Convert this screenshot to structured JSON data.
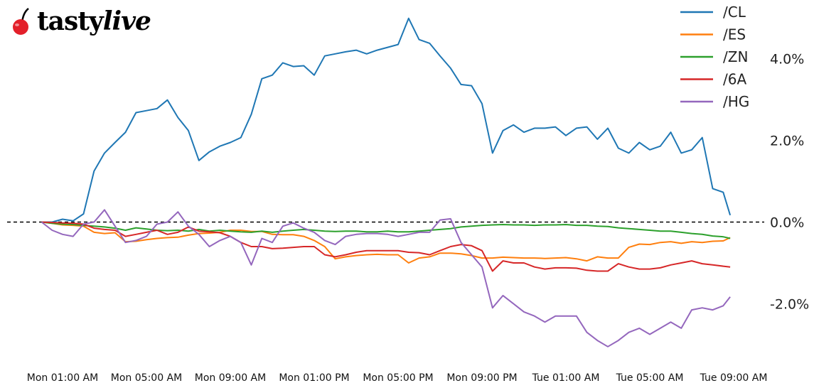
{
  "logo": {
    "text_main": "tasty",
    "text_italic": "live",
    "cherry_color": "#e3202a"
  },
  "chart_data": {
    "type": "line",
    "title": "",
    "xlabel": "",
    "ylabel": "",
    "xlim": [
      "Mon 00:00",
      "Tue 09:00"
    ],
    "ylim": [
      -3.35,
      5.3
    ],
    "grid": false,
    "zero_line": {
      "value": 0,
      "style": "dashed",
      "color": "#000000"
    },
    "legend_placement": "top-right",
    "x_ticks": [
      {
        "label": "Mon 01:00 AM",
        "at": "Mon 01:00"
      },
      {
        "label": "Mon 05:00 AM",
        "at": "Mon 05:00"
      },
      {
        "label": "Mon 09:00 AM",
        "at": "Mon 09:00"
      },
      {
        "label": "Mon 01:00 PM",
        "at": "Mon 13:00"
      },
      {
        "label": "Mon 05:00 PM",
        "at": "Mon 17:00"
      },
      {
        "label": "Mon 09:00 PM",
        "at": "Mon 21:00"
      },
      {
        "label": "Tue 01:00 AM",
        "at": "Tue 01:00"
      },
      {
        "label": "Tue 05:00 AM",
        "at": "Tue 05:00"
      },
      {
        "label": "Tue 09:00 AM",
        "at": "Tue 09:00"
      }
    ],
    "y_ticks": [
      {
        "label": "4.0%",
        "value": 4
      },
      {
        "label": "2.0%",
        "value": 2
      },
      {
        "label": "0.0%",
        "value": 0
      },
      {
        "label": "-2.0%",
        "value": -2
      }
    ],
    "x": [
      "Mon 00:00",
      "Mon 00:30",
      "Mon 01:00",
      "Mon 01:30",
      "Mon 02:00",
      "Mon 02:30",
      "Mon 03:00",
      "Mon 03:30",
      "Mon 04:00",
      "Mon 04:30",
      "Mon 05:00",
      "Mon 05:30",
      "Mon 06:00",
      "Mon 06:30",
      "Mon 07:00",
      "Mon 07:30",
      "Mon 08:00",
      "Mon 08:30",
      "Mon 09:00",
      "Mon 09:30",
      "Mon 10:00",
      "Mon 10:30",
      "Mon 11:00",
      "Mon 11:30",
      "Mon 12:00",
      "Mon 12:30",
      "Mon 13:00",
      "Mon 13:30",
      "Mon 14:00",
      "Mon 14:30",
      "Mon 15:00",
      "Mon 15:30",
      "Mon 16:00",
      "Mon 16:30",
      "Mon 17:00",
      "Mon 17:30",
      "Mon 18:00",
      "Mon 18:30",
      "Mon 19:00",
      "Mon 19:30",
      "Mon 20:00",
      "Mon 20:30",
      "Mon 21:00",
      "Mon 21:30",
      "Mon 22:00",
      "Mon 22:30",
      "Mon 23:00",
      "Mon 23:30",
      "Tue 00:00",
      "Tue 00:30",
      "Tue 01:00",
      "Tue 01:30",
      "Tue 02:00",
      "Tue 02:30",
      "Tue 03:00",
      "Tue 03:30",
      "Tue 04:00",
      "Tue 04:30",
      "Tue 05:00",
      "Tue 05:30",
      "Tue 06:00",
      "Tue 06:30",
      "Tue 07:00",
      "Tue 07:30",
      "Tue 08:00",
      "Tue 08:30",
      "Tue 08:50"
    ],
    "series": [
      {
        "name": "/CL",
        "color": "#1f77b4",
        "values": [
          0,
          0,
          0.07,
          0.03,
          0.2,
          1.25,
          1.69,
          1.95,
          2.2,
          2.68,
          2.73,
          2.78,
          2.99,
          2.56,
          2.24,
          1.51,
          1.72,
          1.86,
          1.95,
          2.07,
          2.64,
          3.51,
          3.6,
          3.9,
          3.81,
          3.83,
          3.6,
          4.07,
          4.12,
          4.17,
          4.21,
          4.12,
          4.21,
          4.28,
          4.35,
          4.99,
          4.47,
          4.38,
          4.07,
          3.77,
          3.37,
          3.34,
          2.9,
          1.69,
          2.24,
          2.38,
          2.2,
          2.3,
          2.3,
          2.33,
          2.12,
          2.3,
          2.33,
          2.03,
          2.3,
          1.81,
          1.69,
          1.95,
          1.77,
          1.86,
          2.2,
          1.69,
          1.77,
          2.07,
          0.82,
          0.73,
          0.17
        ]
      },
      {
        "name": "/ES",
        "color": "#ff7f0e",
        "values": [
          0,
          -0.03,
          -0.07,
          -0.08,
          -0.1,
          -0.25,
          -0.28,
          -0.26,
          -0.48,
          -0.47,
          -0.43,
          -0.4,
          -0.38,
          -0.37,
          -0.32,
          -0.28,
          -0.27,
          -0.25,
          -0.2,
          -0.2,
          -0.23,
          -0.23,
          -0.3,
          -0.31,
          -0.31,
          -0.35,
          -0.45,
          -0.6,
          -0.9,
          -0.85,
          -0.82,
          -0.8,
          -0.79,
          -0.8,
          -0.8,
          -1.0,
          -0.88,
          -0.85,
          -0.76,
          -0.76,
          -0.78,
          -0.82,
          -0.88,
          -0.88,
          -0.86,
          -0.87,
          -0.88,
          -0.88,
          -0.89,
          -0.88,
          -0.87,
          -0.9,
          -0.95,
          -0.85,
          -0.88,
          -0.88,
          -0.62,
          -0.54,
          -0.55,
          -0.5,
          -0.48,
          -0.52,
          -0.48,
          -0.5,
          -0.47,
          -0.46,
          -0.38
        ]
      },
      {
        "name": "/ZN",
        "color": "#2ca02c",
        "values": [
          0,
          -0.03,
          -0.05,
          -0.06,
          -0.08,
          -0.1,
          -0.12,
          -0.15,
          -0.2,
          -0.14,
          -0.17,
          -0.2,
          -0.21,
          -0.2,
          -0.22,
          -0.18,
          -0.22,
          -0.2,
          -0.22,
          -0.24,
          -0.25,
          -0.22,
          -0.25,
          -0.22,
          -0.2,
          -0.18,
          -0.2,
          -0.22,
          -0.23,
          -0.22,
          -0.22,
          -0.24,
          -0.24,
          -0.22,
          -0.24,
          -0.24,
          -0.22,
          -0.2,
          -0.18,
          -0.16,
          -0.12,
          -0.1,
          -0.08,
          -0.07,
          -0.06,
          -0.07,
          -0.07,
          -0.08,
          -0.07,
          -0.07,
          -0.06,
          -0.08,
          -0.08,
          -0.1,
          -0.11,
          -0.14,
          -0.16,
          -0.18,
          -0.2,
          -0.22,
          -0.22,
          -0.25,
          -0.28,
          -0.3,
          -0.34,
          -0.36,
          -0.4
        ]
      },
      {
        "name": "/6A",
        "color": "#d62728",
        "values": [
          0,
          -0.01,
          -0.02,
          -0.03,
          -0.05,
          -0.15,
          -0.18,
          -0.2,
          -0.35,
          -0.3,
          -0.25,
          -0.2,
          -0.3,
          -0.25,
          -0.12,
          -0.22,
          -0.24,
          -0.26,
          -0.35,
          -0.5,
          -0.6,
          -0.6,
          -0.65,
          -0.64,
          -0.62,
          -0.6,
          -0.6,
          -0.8,
          -0.85,
          -0.8,
          -0.74,
          -0.7,
          -0.7,
          -0.7,
          -0.7,
          -0.74,
          -0.75,
          -0.8,
          -0.7,
          -0.6,
          -0.55,
          -0.58,
          -0.7,
          -1.2,
          -0.95,
          -1.0,
          -1.0,
          -1.1,
          -1.15,
          -1.12,
          -1.12,
          -1.13,
          -1.18,
          -1.2,
          -1.2,
          -1.02,
          -1.1,
          -1.15,
          -1.15,
          -1.12,
          -1.05,
          -1.0,
          -0.95,
          -1.02,
          -1.05,
          -1.08,
          -1.1
        ]
      },
      {
        "name": "/HG",
        "color": "#9467bd",
        "values": [
          0,
          -0.2,
          -0.3,
          -0.35,
          -0.05,
          0,
          0.3,
          -0.1,
          -0.5,
          -0.45,
          -0.35,
          -0.05,
          0,
          0.25,
          -0.1,
          -0.3,
          -0.6,
          -0.45,
          -0.35,
          -0.5,
          -1.05,
          -0.4,
          -0.5,
          -0.1,
          -0.02,
          -0.15,
          -0.25,
          -0.45,
          -0.55,
          -0.35,
          -0.3,
          -0.28,
          -0.28,
          -0.3,
          -0.35,
          -0.3,
          -0.25,
          -0.25,
          0.05,
          0.08,
          -0.5,
          -0.8,
          -1.1,
          -2.1,
          -1.8,
          -2.0,
          -2.2,
          -2.3,
          -2.45,
          -2.3,
          -2.3,
          -2.3,
          -2.7,
          -2.9,
          -3.05,
          -2.9,
          -2.7,
          -2.6,
          -2.75,
          -2.6,
          -2.45,
          -2.6,
          -2.15,
          -2.1,
          -2.15,
          -2.05,
          -1.83
        ]
      }
    ]
  }
}
